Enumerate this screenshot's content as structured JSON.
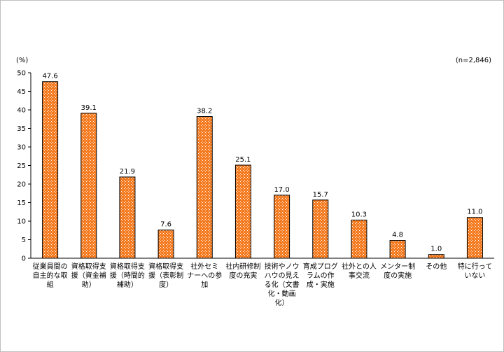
{
  "chart_data": {
    "type": "bar",
    "y_unit_label": "(%)",
    "sample_note": "(n=2,846)",
    "ylim": [
      0,
      50
    ],
    "y_ticks": [
      0,
      5,
      10,
      15,
      20,
      25,
      30,
      35,
      40,
      45,
      50
    ],
    "grid": false,
    "bar_fill": "#F47A1F",
    "bar_dot": "#FFFFFF",
    "bar_stroke": "#000000",
    "categories": [
      "従業員間の自主的な取組",
      "資格取得支援（資金補助）",
      "資格取得支援（時間的補助）",
      "資格取得支援（表彰制度）",
      "社外セミナーへの参加",
      "社内研修制度の充実",
      "技術やノウハウの見える化（文書化・動画化）",
      "育成プログラムの作成・実施",
      "社外との人事交流",
      "メンター制度の実施",
      "その他",
      "特に行っていない"
    ],
    "category_lines": [
      [
        "従業員間の",
        "自主的な取",
        "組"
      ],
      [
        "資格取得支",
        "援（資金補",
        "助）"
      ],
      [
        "資格取得支",
        "援（時間的",
        "補助）"
      ],
      [
        "資格取得支",
        "援（表彰制",
        "度）"
      ],
      [
        "社外セミ",
        "ナーへの参",
        "加"
      ],
      [
        "社内研修制",
        "度の充実"
      ],
      [
        "技術やノウ",
        "ハウの見え",
        "る化（文書",
        "化・動画",
        "化）"
      ],
      [
        "育成プログ",
        "ラムの作",
        "成・実施"
      ],
      [
        "社外との人",
        "事交流"
      ],
      [
        "メンター制",
        "度の実施"
      ],
      [
        "その他"
      ],
      [
        "特に行って",
        "いない"
      ]
    ],
    "values": [
      47.6,
      39.1,
      21.9,
      7.6,
      38.2,
      25.1,
      17.0,
      15.7,
      10.3,
      4.8,
      1.0,
      11.0
    ],
    "value_labels": [
      "47.6",
      "39.1",
      "21.9",
      "7.6",
      "38.2",
      "25.1",
      "17.0",
      "15.7",
      "10.3",
      "4.8",
      "1.0",
      "11.0"
    ]
  }
}
